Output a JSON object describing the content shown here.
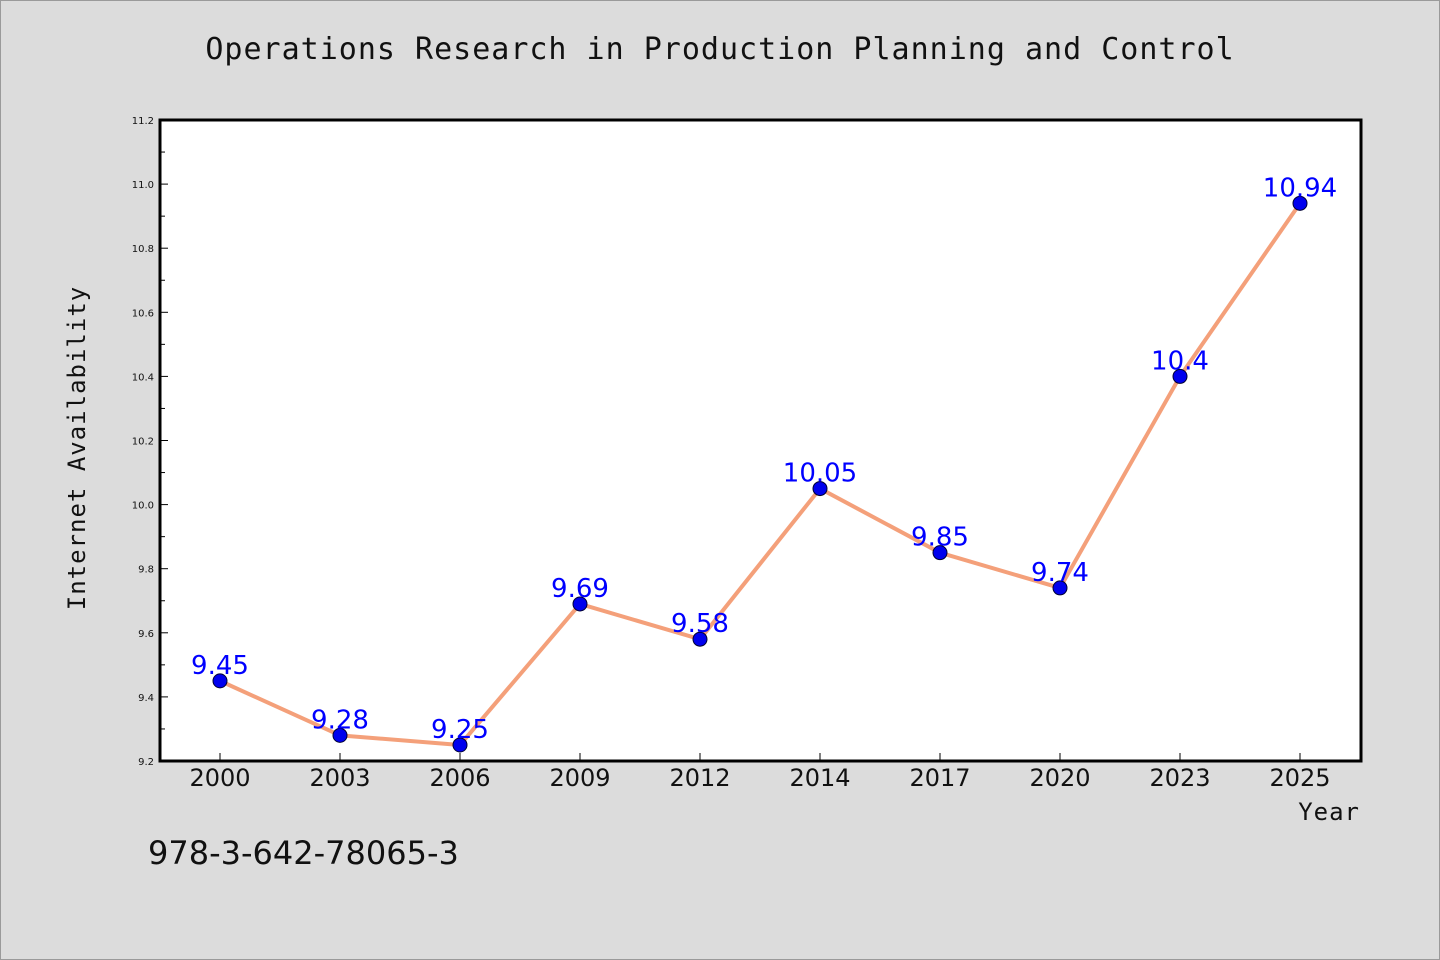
{
  "figure": {
    "background": "#dcdcdc",
    "isbn_text": "978-3-642-78065-3"
  },
  "chart_data": {
    "type": "line",
    "title": "Operations Research in Production Planning and Control",
    "xlabel": "Year",
    "ylabel": "Internet Availability",
    "categories": [
      "2000",
      "2003",
      "2006",
      "2009",
      "2012",
      "2014",
      "2017",
      "2020",
      "2023",
      "2025"
    ],
    "series": [
      {
        "values": [
          9.45,
          9.28,
          9.25,
          9.69,
          9.58,
          10.05,
          9.85,
          9.74,
          10.4,
          10.94
        ],
        "labels": [
          "9.45",
          "9.28",
          "9.25",
          "9.69",
          "9.58",
          "10.05",
          "9.85",
          "9.74",
          "10.4",
          "10.94"
        ],
        "line_color": "#f4a07a",
        "marker_color": "#0000ee",
        "label_color": "#0000ff"
      }
    ],
    "ylim": [
      9.2,
      11.2
    ],
    "yticks": [
      "9.2",
      "9.4",
      "9.6",
      "9.8",
      "10.0",
      "10.2",
      "10.4",
      "10.6",
      "10.8",
      "11.0",
      "11.2"
    ],
    "grid": false,
    "legend": "none"
  }
}
